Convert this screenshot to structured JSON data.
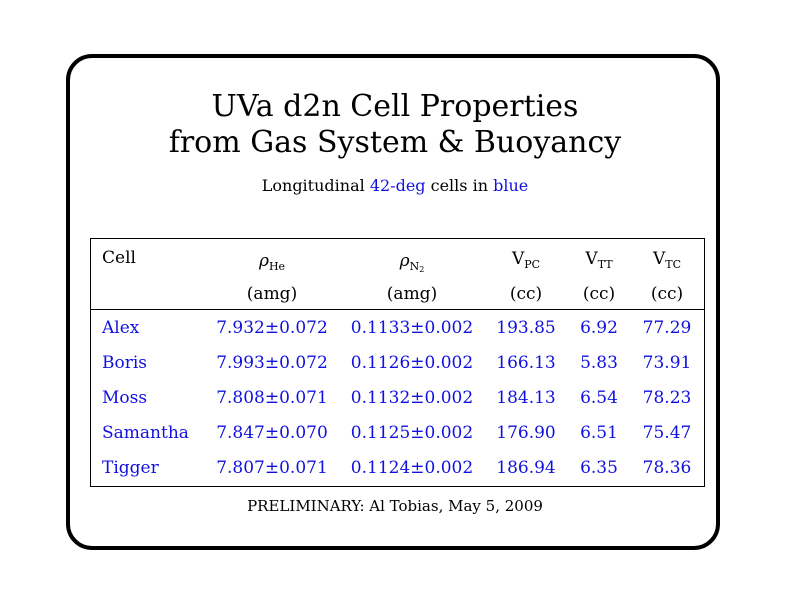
{
  "title_line1": "UVa d2n Cell Properties",
  "title_line2": "from Gas System & Buoyancy",
  "subtitle": {
    "pre": "Longitudinal ",
    "highlight1": "42-deg",
    "mid": " cells in ",
    "highlight2": "blue"
  },
  "table": {
    "headers": {
      "cell": "Cell",
      "rho": "ρ",
      "he_sub": "He",
      "n_sub": "N",
      "n_subsub": "2",
      "v": "V",
      "pc_sub": "PC",
      "tt_sub": "TT",
      "tc_sub": "TC"
    },
    "units": [
      "(amg)",
      "(amg)",
      "(cc)",
      "(cc)",
      "(cc)"
    ],
    "rows": [
      [
        "Alex",
        "7.932±0.072",
        "0.1133±0.002",
        "193.85",
        "6.92",
        "77.29"
      ],
      [
        "Boris",
        "7.993±0.072",
        "0.1126±0.002",
        "166.13",
        "5.83",
        "73.91"
      ],
      [
        "Moss",
        "7.808±0.071",
        "0.1132±0.002",
        "184.13",
        "6.54",
        "78.23"
      ],
      [
        "Samantha",
        "7.847±0.070",
        "0.1125±0.002",
        "176.90",
        "6.51",
        "75.47"
      ],
      [
        "Tigger",
        "7.807±0.071",
        "0.1124±0.002",
        "186.94",
        "6.35",
        "78.36"
      ]
    ]
  },
  "footer": "PRELIMINARY: Al Tobias, May 5, 2009",
  "colors": {
    "highlight": "#1010e0"
  }
}
